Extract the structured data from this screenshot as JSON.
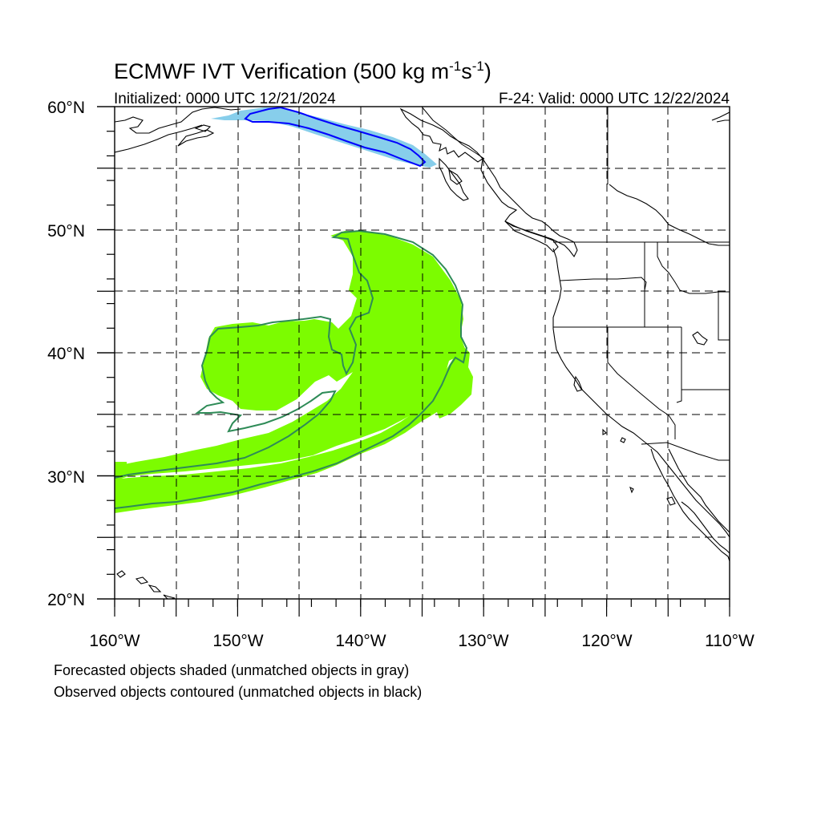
{
  "title_main": "ECMWF IVT Verification (500 kg m",
  "title_exp1": "-1",
  "title_mid": "s",
  "title_exp2": "-1",
  "title_end": ")",
  "initialized": "Initialized: 0000 UTC 12/21/2024",
  "valid": "F-24: Valid: 0000 UTC 12/22/2024",
  "lat_labels": [
    "60°N",
    "50°N",
    "40°N",
    "30°N",
    "20°N"
  ],
  "lon_labels": [
    "160°W",
    "150°W",
    "140°W",
    "130°W",
    "120°W",
    "110°W"
  ],
  "legend_line1": "Forecasted objects shaded (unmatched objects in gray)",
  "legend_line2": "Observed objects contoured (unmatched objects in black)",
  "map": {
    "lon_range": [
      -160,
      -110
    ],
    "lat_range": [
      20,
      60
    ],
    "objects": [
      {
        "name": "northern-ivt-object",
        "forecast_fill": "#87ceeb",
        "observed_contour": "#0000ff"
      },
      {
        "name": "main-atmospheric-river-object",
        "forecast_fill": "#7cfc00",
        "observed_contour": "#2e8b57"
      }
    ]
  }
}
